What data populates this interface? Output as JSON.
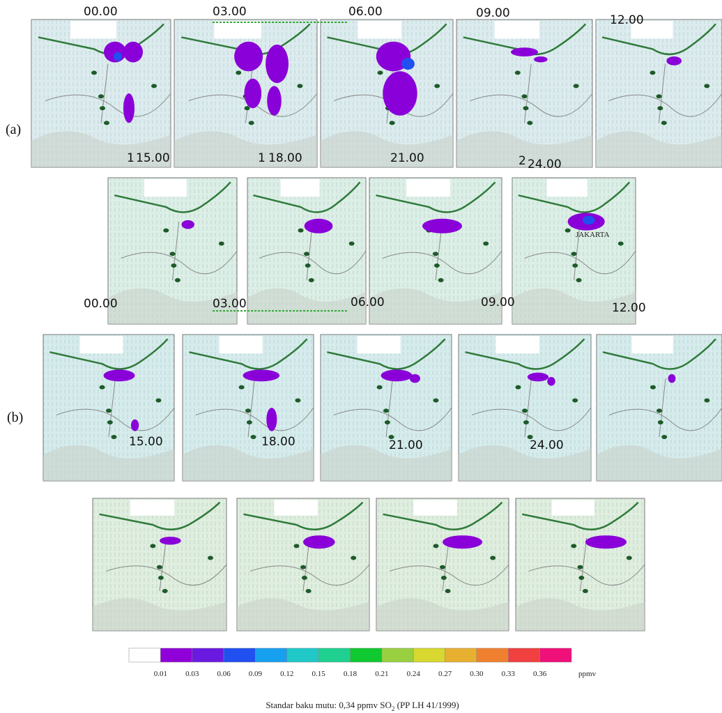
{
  "panel_a": {
    "label": "(a)",
    "times_top": [
      "00.00",
      "03.00",
      "06.00",
      "09.00",
      "12.00"
    ],
    "times_bottom": [
      "15.00",
      "18.00",
      "21.00",
      "24.00"
    ],
    "stray_digits": [
      "1",
      "1",
      "2"
    ],
    "place_label": "JAKARTA"
  },
  "panel_b": {
    "label": "(b)",
    "times_top": [
      "00.00",
      "03.00",
      "06.00",
      "09.00",
      "12.00"
    ],
    "times_bottom": [
      "15.00",
      "18.00",
      "21.00",
      "24.00"
    ]
  },
  "colorbar": {
    "colors": [
      "#ffffff",
      "#9000d8",
      "#6a1ae0",
      "#2050f0",
      "#18a0f0",
      "#20c8c8",
      "#20d090",
      "#10c830",
      "#98d040",
      "#d8d830",
      "#e8b030",
      "#f08030",
      "#f04040",
      "#f0107a"
    ],
    "tick_labels": [
      "0.01",
      "0.03",
      "0.06",
      "0.09",
      "0.12",
      "0.15",
      "0.18",
      "0.21",
      "0.24",
      "0.27",
      "0.30",
      "0.33",
      "0.36"
    ],
    "unit": "ppmv"
  },
  "caption": {
    "text": "Standar baku mutu: 0,34 ppmv SO",
    "subscript": "2",
    "suffix": " (PP LH 41/1999)"
  }
}
